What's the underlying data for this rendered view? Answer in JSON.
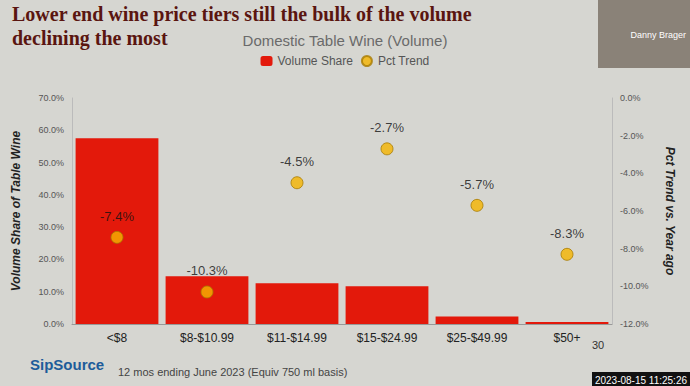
{
  "slide_title": [
    "Lower end wine price tiers still the bulk of the volume",
    "declining the most"
  ],
  "chart_data": {
    "type": "bar",
    "title": "Domestic Table Wine (Volume)",
    "categories": [
      "<$8",
      "$8-$10.99",
      "$11-$14.99",
      "$15-$24.99",
      "$25-$49.99",
      "$50+"
    ],
    "series": [
      {
        "name": "Volume Share",
        "type": "bar",
        "color": "#e3190b",
        "values": [
          57.5,
          14.8,
          12.6,
          11.7,
          2.3,
          0.6
        ]
      },
      {
        "name": "Pct Trend",
        "type": "scatter",
        "axis": "y2",
        "color": "#f5b400",
        "marker": "circle",
        "values": [
          -7.4,
          -10.3,
          -4.5,
          -2.7,
          -5.7,
          -8.3
        ],
        "value_labels": [
          "-7.4%",
          "-10.3%",
          "-4.5%",
          "-2.7%",
          "-5.7%",
          "-8.3%"
        ]
      }
    ],
    "data_labels": true,
    "ylabel": "Volume Share of Table Wine",
    "y2label": "Pct Trend vs. Year ago",
    "ylim": [
      0,
      70
    ],
    "yticks": [
      {
        "value": 0,
        "label": "0.0%"
      },
      {
        "value": 10,
        "label": "10.0%"
      },
      {
        "value": 20,
        "label": "20.0%"
      },
      {
        "value": 30,
        "label": "30.0%"
      },
      {
        "value": 40,
        "label": "40.0%"
      },
      {
        "value": 50,
        "label": "50.0%"
      },
      {
        "value": 60,
        "label": "60.0%"
      },
      {
        "value": 70,
        "label": "70.0%"
      }
    ],
    "y2lim": [
      -12,
      0
    ],
    "y2ticks": [
      {
        "value": -12,
        "label": "-12.0%"
      },
      {
        "value": -10,
        "label": "-10.0%"
      },
      {
        "value": -8,
        "label": "-8.0%"
      },
      {
        "value": -6,
        "label": "-6.0%"
      },
      {
        "value": -4,
        "label": "-4.0%"
      },
      {
        "value": -2,
        "label": "-2.0%"
      },
      {
        "value": 0,
        "label": "0.0%"
      }
    ],
    "grid": false,
    "legend": "top"
  },
  "footnote": "12 mos ending June 2023 (Equiv 750 ml basis)",
  "logo": "SipSource",
  "presenter": "Danny Brager",
  "slide_number": "30",
  "timestamp": "2023-08-15 11:25:26"
}
